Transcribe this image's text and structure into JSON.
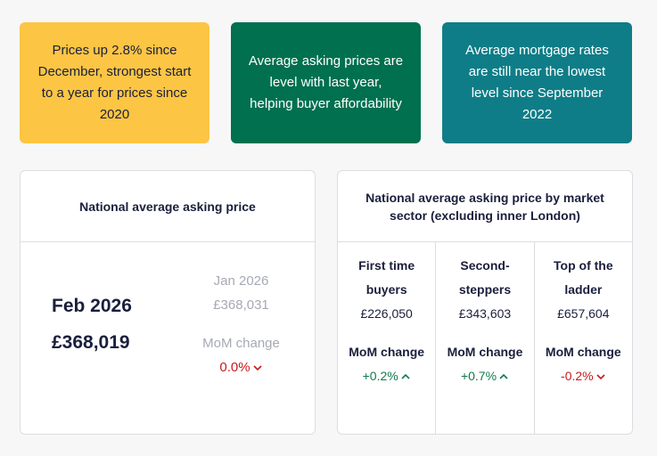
{
  "highlights": [
    {
      "text": "Prices up 2.8% since December, strongest start to a year for prices since 2020",
      "color": "#fdc544"
    },
    {
      "text": "Average asking prices are level with last year, helping buyer affordability",
      "color": "#00704f"
    },
    {
      "text": "Average mortgage rates are still near the lowest level since September 2022",
      "color": "#0f7d87"
    }
  ],
  "national": {
    "title": "National average asking price",
    "current_period": "Feb 2026",
    "current_price": "£368,019",
    "previous_period": "Jan 2026",
    "previous_price": "£368,031",
    "mom_label": "MoM change",
    "mom_value": "0.0%",
    "mom_direction": "down-icon"
  },
  "sectors": {
    "title": "National average asking price by market sector (excluding inner London)",
    "items": [
      {
        "name": "First time buyers",
        "price": "£226,050",
        "mom_label": "MoM change",
        "change": "+0.2%",
        "direction": "up-icon"
      },
      {
        "name": "Second-steppers",
        "price": "£343,603",
        "mom_label": "MoM change",
        "change": "+0.7%",
        "direction": "up-icon"
      },
      {
        "name": "Top of the ladder",
        "price": "£657,604",
        "mom_label": "MoM change",
        "change": "-0.2%",
        "direction": "down-icon"
      }
    ]
  },
  "colors": {
    "up": "#117a4d",
    "down": "#c8191b",
    "muted": "#a7a9b4",
    "text": "#1a1f3c"
  }
}
